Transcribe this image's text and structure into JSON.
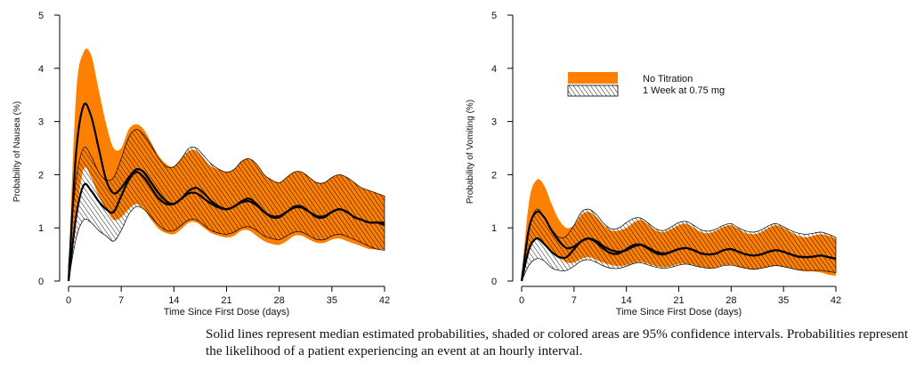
{
  "caption": "Solid lines represent median estimated probabilities, shaded or colored areas are 95% confidence intervals.  Probabilities represent the likelihood of a patient experiencing an event at an hourly interval.",
  "colors": {
    "no_titration": "#ff8000",
    "titration_hatch": "#000000",
    "median": "#000000"
  },
  "legend": {
    "items": [
      "No Titration",
      "1 Week at 0.75 mg"
    ],
    "placement": "top-right of second chart"
  },
  "chart_data": [
    {
      "type": "line",
      "panel": "nausea",
      "xlabel": "Time Since First Dose (days)",
      "ylabel": "Probability of Nausea (%)",
      "xlim": [
        0,
        42
      ],
      "ylim": [
        0,
        5
      ],
      "xticks": [
        0,
        7,
        14,
        21,
        28,
        35,
        42
      ],
      "yticks": [
        0,
        1,
        2,
        3,
        4,
        5
      ],
      "grid": false,
      "x": [
        0,
        1,
        2,
        3,
        4,
        5,
        6,
        7,
        8,
        9,
        10,
        11,
        12,
        13,
        14,
        15,
        16,
        17,
        18,
        19,
        20,
        21,
        22,
        23,
        24,
        25,
        26,
        27,
        28,
        29,
        30,
        31,
        32,
        33,
        34,
        35,
        36,
        37,
        38,
        39,
        40,
        41,
        42
      ],
      "series": [
        {
          "name": "No Titration",
          "style": "orange-band",
          "median": [
            0,
            2.4,
            3.3,
            3.1,
            2.5,
            1.9,
            1.65,
            1.75,
            1.95,
            2.1,
            2.05,
            1.85,
            1.65,
            1.5,
            1.45,
            1.55,
            1.7,
            1.75,
            1.65,
            1.5,
            1.4,
            1.35,
            1.4,
            1.5,
            1.55,
            1.45,
            1.3,
            1.2,
            1.2,
            1.3,
            1.4,
            1.4,
            1.3,
            1.2,
            1.2,
            1.3,
            1.35,
            1.3,
            1.2,
            1.15,
            1.1,
            1.1,
            1.1
          ],
          "upper": [
            0.2,
            3.5,
            4.3,
            4.25,
            3.6,
            2.95,
            2.5,
            2.5,
            2.85,
            2.95,
            2.85,
            2.6,
            2.35,
            2.2,
            2.15,
            2.3,
            2.45,
            2.45,
            2.3,
            2.15,
            2.1,
            2.05,
            2.1,
            2.25,
            2.3,
            2.2,
            2.0,
            1.9,
            1.85,
            1.95,
            2.05,
            2.05,
            1.95,
            1.85,
            1.85,
            1.95,
            2.0,
            1.95,
            1.85,
            1.75,
            1.7,
            1.65,
            1.6
          ],
          "lower": [
            0,
            1.2,
            2.1,
            1.95,
            1.6,
            1.35,
            1.15,
            1.2,
            1.35,
            1.45,
            1.35,
            1.15,
            0.98,
            0.9,
            0.88,
            0.98,
            1.1,
            1.1,
            1.0,
            0.9,
            0.85,
            0.82,
            0.85,
            0.95,
            0.95,
            0.85,
            0.75,
            0.7,
            0.68,
            0.75,
            0.85,
            0.85,
            0.78,
            0.72,
            0.72,
            0.78,
            0.8,
            0.75,
            0.7,
            0.65,
            0.6,
            0.6,
            0.6
          ]
        },
        {
          "name": "1 Week at 0.75 mg",
          "style": "hatched-band",
          "median": [
            0,
            1.2,
            1.8,
            1.7,
            1.5,
            1.35,
            1.3,
            1.6,
            1.9,
            2.05,
            1.95,
            1.75,
            1.55,
            1.45,
            1.45,
            1.55,
            1.65,
            1.65,
            1.55,
            1.45,
            1.38,
            1.35,
            1.4,
            1.48,
            1.5,
            1.42,
            1.3,
            1.22,
            1.22,
            1.3,
            1.38,
            1.38,
            1.3,
            1.22,
            1.22,
            1.3,
            1.35,
            1.3,
            1.2,
            1.15,
            1.1,
            1.1,
            1.05
          ],
          "upper": [
            0.3,
            1.9,
            2.5,
            2.35,
            2.05,
            1.9,
            1.95,
            2.3,
            2.7,
            2.85,
            2.75,
            2.55,
            2.3,
            2.15,
            2.15,
            2.3,
            2.5,
            2.5,
            2.35,
            2.2,
            2.1,
            2.05,
            2.1,
            2.25,
            2.3,
            2.2,
            2.0,
            1.9,
            1.85,
            1.95,
            2.05,
            2.05,
            1.95,
            1.85,
            1.85,
            1.95,
            2.0,
            1.95,
            1.85,
            1.75,
            1.7,
            1.65,
            1.6
          ],
          "lower": [
            0,
            0.8,
            1.15,
            1.1,
            0.95,
            0.85,
            0.75,
            0.95,
            1.25,
            1.4,
            1.35,
            1.2,
            1.05,
            0.95,
            0.95,
            1.05,
            1.15,
            1.15,
            1.05,
            0.95,
            0.9,
            0.88,
            0.92,
            1.0,
            1.02,
            0.95,
            0.85,
            0.8,
            0.78,
            0.85,
            0.92,
            0.92,
            0.85,
            0.78,
            0.78,
            0.85,
            0.88,
            0.84,
            0.78,
            0.72,
            0.65,
            0.6,
            0.58
          ]
        }
      ]
    },
    {
      "type": "line",
      "panel": "vomiting",
      "xlabel": "Time Since First Dose (days)",
      "ylabel": "Probability of Vomiting (%)",
      "xlim": [
        0,
        42
      ],
      "ylim": [
        0,
        5
      ],
      "xticks": [
        0,
        7,
        14,
        21,
        28,
        35,
        42
      ],
      "yticks": [
        0,
        1,
        2,
        3,
        4,
        5
      ],
      "grid": false,
      "x": [
        0,
        1,
        2,
        3,
        4,
        5,
        6,
        7,
        8,
        9,
        10,
        11,
        12,
        13,
        14,
        15,
        16,
        17,
        18,
        19,
        20,
        21,
        22,
        23,
        24,
        25,
        26,
        27,
        28,
        29,
        30,
        31,
        32,
        33,
        34,
        35,
        36,
        37,
        38,
        39,
        40,
        41,
        42
      ],
      "series": [
        {
          "name": "No Titration",
          "style": "orange-band",
          "median": [
            0,
            1.0,
            1.3,
            1.2,
            0.95,
            0.75,
            0.62,
            0.65,
            0.75,
            0.8,
            0.75,
            0.65,
            0.58,
            0.55,
            0.58,
            0.65,
            0.68,
            0.62,
            0.55,
            0.52,
            0.55,
            0.6,
            0.62,
            0.58,
            0.52,
            0.5,
            0.52,
            0.58,
            0.6,
            0.55,
            0.5,
            0.48,
            0.5,
            0.55,
            0.58,
            0.55,
            0.5,
            0.46,
            0.45,
            0.46,
            0.48,
            0.45,
            0.42
          ],
          "upper": [
            0.1,
            1.5,
            1.9,
            1.8,
            1.45,
            1.15,
            1.0,
            1.05,
            1.25,
            1.3,
            1.2,
            1.05,
            0.95,
            0.95,
            1.0,
            1.1,
            1.15,
            1.05,
            0.95,
            0.92,
            0.98,
            1.05,
            1.08,
            1.0,
            0.92,
            0.9,
            0.95,
            1.02,
            1.05,
            0.98,
            0.9,
            0.88,
            0.92,
            1.0,
            1.05,
            1.0,
            0.92,
            0.85,
            0.82,
            0.85,
            0.88,
            0.85,
            0.8
          ],
          "lower": [
            0,
            0.6,
            0.8,
            0.72,
            0.58,
            0.45,
            0.35,
            0.35,
            0.42,
            0.45,
            0.4,
            0.34,
            0.3,
            0.28,
            0.3,
            0.34,
            0.36,
            0.32,
            0.28,
            0.26,
            0.28,
            0.32,
            0.33,
            0.3,
            0.26,
            0.24,
            0.26,
            0.3,
            0.31,
            0.27,
            0.24,
            0.22,
            0.24,
            0.27,
            0.29,
            0.27,
            0.24,
            0.2,
            0.18,
            0.18,
            0.16,
            0.12,
            0.1
          ]
        },
        {
          "name": "1 Week at 0.75 mg",
          "style": "hatched-band",
          "median": [
            0,
            0.6,
            0.8,
            0.7,
            0.55,
            0.45,
            0.45,
            0.6,
            0.75,
            0.8,
            0.72,
            0.6,
            0.52,
            0.52,
            0.6,
            0.68,
            0.68,
            0.6,
            0.52,
            0.5,
            0.55,
            0.6,
            0.62,
            0.58,
            0.52,
            0.5,
            0.52,
            0.58,
            0.6,
            0.55,
            0.5,
            0.48,
            0.5,
            0.55,
            0.58,
            0.55,
            0.5,
            0.46,
            0.45,
            0.46,
            0.48,
            0.45,
            0.42
          ],
          "upper": [
            0.1,
            1.0,
            1.35,
            1.2,
            0.98,
            0.82,
            0.85,
            1.05,
            1.3,
            1.35,
            1.25,
            1.08,
            0.98,
            1.0,
            1.1,
            1.18,
            1.18,
            1.08,
            0.98,
            0.95,
            1.02,
            1.1,
            1.12,
            1.05,
            0.96,
            0.94,
            0.98,
            1.05,
            1.08,
            1.0,
            0.94,
            0.92,
            0.96,
            1.04,
            1.08,
            1.02,
            0.95,
            0.9,
            0.88,
            0.9,
            0.92,
            0.88,
            0.82
          ],
          "lower": [
            0,
            0.3,
            0.42,
            0.38,
            0.25,
            0.2,
            0.2,
            0.28,
            0.38,
            0.4,
            0.35,
            0.28,
            0.24,
            0.24,
            0.28,
            0.33,
            0.34,
            0.3,
            0.26,
            0.24,
            0.26,
            0.3,
            0.32,
            0.29,
            0.26,
            0.24,
            0.25,
            0.29,
            0.3,
            0.27,
            0.24,
            0.22,
            0.24,
            0.27,
            0.29,
            0.27,
            0.24,
            0.21,
            0.2,
            0.2,
            0.2,
            0.18,
            0.16
          ]
        }
      ]
    }
  ]
}
